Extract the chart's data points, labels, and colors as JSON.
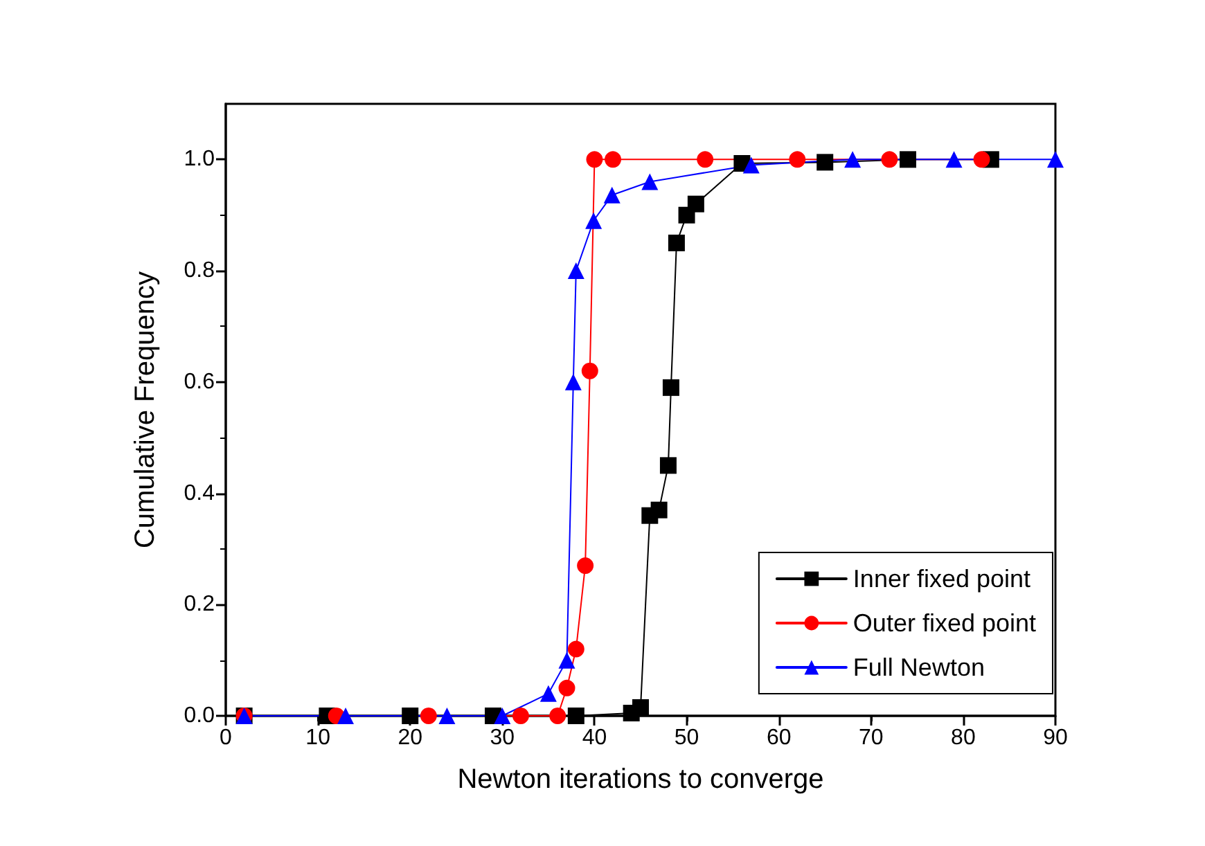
{
  "chart_data": {
    "type": "line",
    "xlabel": "Newton iterations to converge",
    "ylabel": "Cumulative Frequency",
    "xlim": [
      0,
      90
    ],
    "xticks": [
      0,
      10,
      20,
      30,
      40,
      50,
      60,
      70,
      80,
      90
    ],
    "ylim": [
      0,
      1.1
    ],
    "yticks": [
      {
        "value": 0,
        "label": "0.0"
      },
      {
        "value": 0.2,
        "label": "0.2"
      },
      {
        "value": 0.4,
        "label": "0.4"
      },
      {
        "value": 0.6,
        "label": "0.6"
      },
      {
        "value": 0.8,
        "label": "0.8"
      },
      {
        "value": 1,
        "label": "1.0"
      }
    ],
    "grid": false,
    "legend": "bottom right",
    "line_style": "solid",
    "series": [
      {
        "name": "Inner fixed point",
        "color": "#000000",
        "marker": "square",
        "x": [
          2,
          11,
          20,
          29,
          38,
          44,
          45,
          46,
          47,
          48,
          48.3,
          48.9,
          50,
          51,
          56,
          65,
          74,
          83
        ],
        "values": [
          0,
          0,
          0,
          0,
          0,
          0.005,
          0.015,
          0.36,
          0.37,
          0.45,
          0.59,
          0.85,
          0.9,
          0.92,
          0.993,
          0.995,
          1,
          1
        ]
      },
      {
        "name": "Outer fixed point",
        "color": "#ff0000",
        "marker": "circle",
        "x": [
          2,
          12,
          22,
          32,
          36,
          37,
          38,
          39,
          39.5,
          40,
          42,
          52,
          62,
          72,
          82
        ],
        "values": [
          0,
          0,
          0,
          0,
          0,
          0.05,
          0.12,
          0.27,
          0.62,
          1,
          1,
          1,
          1,
          1,
          1
        ]
      },
      {
        "name": "Full Newton",
        "color": "#0000ff",
        "marker": "triangle",
        "x": [
          2,
          13,
          24,
          30,
          35,
          37,
          37.7,
          38,
          39.9,
          41.9,
          46,
          57,
          68,
          79,
          90
        ],
        "values": [
          0,
          0,
          0,
          0,
          0.04,
          0.1,
          0.6,
          0.8,
          0.89,
          0.936,
          0.96,
          0.99,
          1,
          1,
          1
        ]
      }
    ]
  }
}
